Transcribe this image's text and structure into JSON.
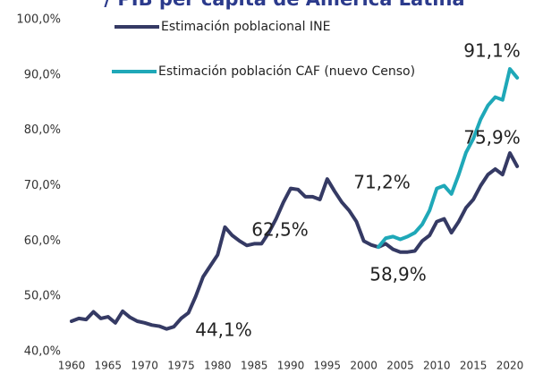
{
  "chart_data": {
    "type": "line",
    "title": "/ PIB per cápita de América Latina",
    "x": [
      1960,
      1961,
      1962,
      1963,
      1964,
      1965,
      1966,
      1967,
      1968,
      1969,
      1970,
      1971,
      1972,
      1973,
      1974,
      1975,
      1976,
      1977,
      1978,
      1979,
      1980,
      1981,
      1982,
      1983,
      1984,
      1985,
      1986,
      1987,
      1988,
      1989,
      1990,
      1991,
      1992,
      1993,
      1994,
      1995,
      1996,
      1997,
      1998,
      1999,
      2000,
      2001,
      2002,
      2003,
      2004,
      2005,
      2006,
      2007,
      2008,
      2009,
      2010,
      2011,
      2012,
      2013,
      2014,
      2015,
      2016,
      2017,
      2018,
      2019,
      2020,
      2021
    ],
    "series": [
      {
        "name": "Estimación poblacional INE",
        "color": "#353a64",
        "values": [
          45.5,
          46,
          45.8,
          47.2,
          46,
          46.3,
          45.2,
          47.3,
          46.2,
          45.5,
          45.2,
          44.8,
          44.6,
          44.1,
          44.5,
          46,
          47,
          50,
          53.5,
          55.5,
          57.5,
          62.5,
          61,
          60,
          59.2,
          59.5,
          59.5,
          61.5,
          64,
          67,
          69.5,
          69.3,
          68,
          68,
          67.5,
          71.2,
          69,
          67,
          65.5,
          63.5,
          60,
          59.3,
          58.9,
          59.5,
          58.5,
          58,
          58,
          58.2,
          60,
          61,
          63.5,
          64,
          61.5,
          63.5,
          66,
          67.5,
          70,
          72,
          73,
          72,
          75.9,
          73.5
        ]
      },
      {
        "name": "Estimación población CAF (nuevo Censo)",
        "color": "#1fa8b8",
        "values": [
          null,
          null,
          null,
          null,
          null,
          null,
          null,
          null,
          null,
          null,
          null,
          null,
          null,
          null,
          null,
          null,
          null,
          null,
          null,
          null,
          null,
          null,
          null,
          null,
          null,
          null,
          null,
          null,
          null,
          null,
          null,
          null,
          null,
          null,
          null,
          null,
          null,
          null,
          null,
          null,
          null,
          null,
          58.9,
          60.5,
          60.8,
          60.3,
          60.8,
          61.5,
          63,
          65.5,
          69.5,
          70,
          68.5,
          72,
          76,
          78.5,
          82,
          84.5,
          86,
          85.5,
          91.1,
          89.5
        ]
      }
    ],
    "annotations": [
      "91,1%",
      "75,9%",
      "71,2%",
      "62,5%",
      "58,9%",
      "44,1%"
    ],
    "xlim": [
      1959,
      2022
    ],
    "xticks": [
      1960,
      1965,
      1970,
      1975,
      1980,
      1985,
      1990,
      1995,
      2000,
      2005,
      2010,
      2015,
      2020
    ],
    "ylim": [
      40,
      100
    ],
    "yticks": [
      {
        "value": 40,
        "label": "40,0%"
      },
      {
        "value": 50,
        "label": "50,0%"
      },
      {
        "value": 60,
        "label": "60,0%"
      },
      {
        "value": 70,
        "label": "70,0%"
      },
      {
        "value": 80,
        "label": "80,0%"
      },
      {
        "value": 90,
        "label": "90,0%"
      },
      {
        "value": 100,
        "label": "100,0%"
      }
    ],
    "grid": false,
    "legend": "top-left"
  }
}
